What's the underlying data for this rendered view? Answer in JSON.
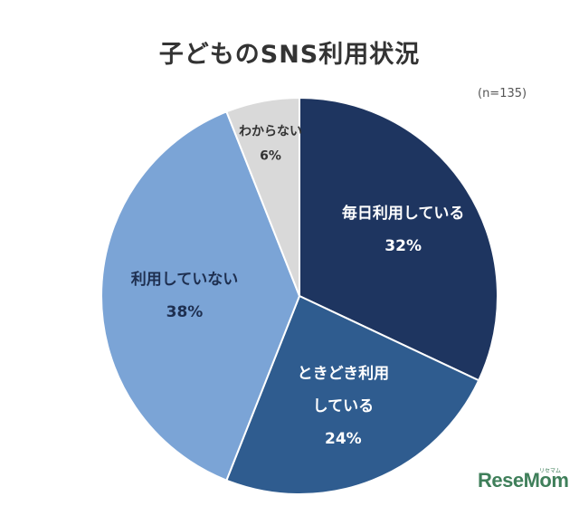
{
  "chart_data": {
    "type": "pie",
    "title": "子どものSNS利用状況",
    "note": "(n=135)",
    "slices": [
      {
        "label_lines": [
          "毎日利用している"
        ],
        "value": 32,
        "value_label": "32%",
        "color": "#1e3560",
        "text_color": "#ffffff"
      },
      {
        "label_lines": [
          "ときどき利用",
          "している"
        ],
        "value": 24,
        "value_label": "24%",
        "color": "#2f5c8f",
        "text_color": "#ffffff"
      },
      {
        "label_lines": [
          "利用していない"
        ],
        "value": 38,
        "value_label": "38%",
        "color": "#7ba4d6",
        "text_color": "#1e2f50"
      },
      {
        "label_lines": [
          "わからない"
        ],
        "value": 6,
        "value_label": "6%",
        "color": "#d9d9d9",
        "text_color": "#333333"
      }
    ]
  },
  "logo": {
    "text": "ReseMom",
    "small": "リセマム"
  }
}
